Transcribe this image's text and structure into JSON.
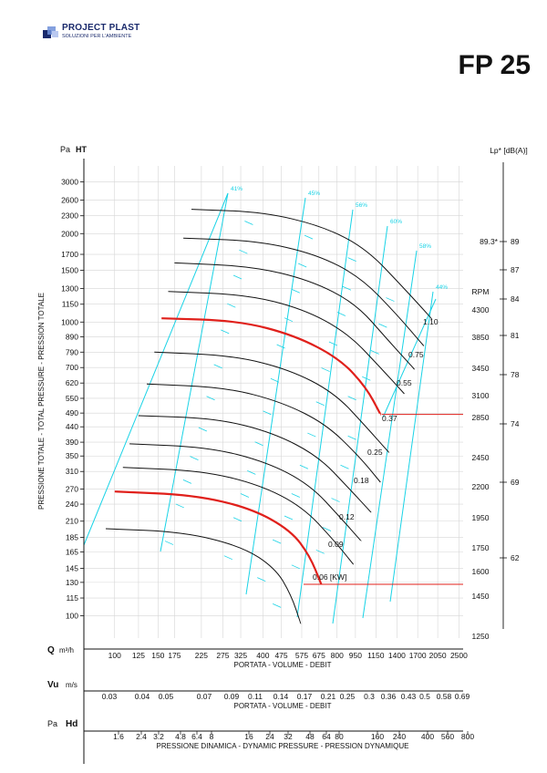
{
  "brand": {
    "name": "PROJECT PLAST",
    "tagline": "SOLUZIONI PER L'AMBIENTE",
    "colors": {
      "navy": "#1a2a6c",
      "accent": "#6f8fd8"
    }
  },
  "model": "FP 25",
  "chart_data": {
    "type": "line",
    "title": "",
    "ylabel": "PRESSIONE TOTALE - TOTAL PRESSURE - PRESSION TOTALE",
    "y_unit_label": "Pa",
    "y_unit_symbol": "HT",
    "y_scale": "log",
    "ylim": [
      84,
      3400
    ],
    "y_ticks": [
      3000,
      2600,
      2300,
      2000,
      1700,
      1500,
      1300,
      1150,
      1000,
      890,
      790,
      700,
      620,
      550,
      490,
      440,
      390,
      350,
      310,
      270,
      240,
      210,
      185,
      165,
      145,
      130,
      115,
      100
    ],
    "x_scale": "log",
    "xlim": [
      75,
      2600
    ],
    "x_axes": [
      {
        "symbol": "Q",
        "unit": "m³/h",
        "label": "PORTATA - VOLUME - DEBIT",
        "ticks": [
          "100",
          "125",
          "150",
          "175",
          "225",
          "275",
          "325",
          "400",
          "475",
          "575",
          "675",
          "800",
          "950",
          "1150",
          "1400",
          "1700",
          "2050",
          "2500"
        ]
      },
      {
        "symbol": "Vu",
        "unit": "m/s",
        "label": "PORTATA - VOLUME - DEBIT",
        "ticks": [
          "0.03",
          "0.04",
          "0.05",
          "0.07",
          "0.09",
          "0.11",
          "0.14",
          "0.17",
          "0.21",
          "0.25",
          "0.3",
          "0.36",
          "0.43",
          "0.5",
          "0.58",
          "0.69"
        ]
      },
      {
        "symbol": "Hd",
        "unit": "Pa",
        "label": "PRESSIONE DINAMICA - DYNAMIC PRESSURE - PRESSION DYNAMIQUE",
        "ticks": [
          "1.6",
          "2.4",
          "3.2",
          "4.8",
          "6.4",
          "8",
          "16",
          "24",
          "32",
          "48",
          "64",
          "80",
          "160",
          "240",
          "400",
          "560",
          "800"
        ]
      }
    ],
    "rpm": {
      "label": "RPM",
      "ticks": [
        "4300",
        "3850",
        "3450",
        "3100",
        "2850",
        "2450",
        "2200",
        "1950",
        "1750",
        "1600",
        "1450",
        "1250"
      ]
    },
    "noise": {
      "label": "Lp* [dB(A)]",
      "ticks": [
        "89",
        "87",
        "84",
        "81",
        "78",
        "74",
        "69",
        "62"
      ],
      "marked": "89.3*"
    },
    "efficiency_lines": [
      "41%",
      "45%",
      "56%",
      "60%",
      "58%",
      "44%"
    ],
    "power_labels": [
      "1.10",
      "0.75",
      "0.55",
      "0.37",
      "0.25",
      "0.18",
      "0.12",
      "0.09",
      "0.06 [KW]"
    ],
    "series": [
      {
        "rpm": 4300,
        "points": [
          [
            205,
            2420
          ],
          [
            400,
            2370
          ],
          [
            700,
            2120
          ],
          [
            1050,
            1780
          ],
          [
            1500,
            1300
          ],
          [
            1950,
            1020
          ]
        ]
      },
      {
        "rpm": 3850,
        "points": [
          [
            190,
            1930
          ],
          [
            380,
            1890
          ],
          [
            660,
            1700
          ],
          [
            1000,
            1420
          ],
          [
            1400,
            1060
          ],
          [
            1800,
            830
          ]
        ]
      },
      {
        "rpm": 3450,
        "points": [
          [
            175,
            1590
          ],
          [
            360,
            1550
          ],
          [
            620,
            1390
          ],
          [
            950,
            1160
          ],
          [
            1300,
            860
          ],
          [
            1650,
            690
          ]
        ]
      },
      {
        "rpm": 3100,
        "points": [
          [
            165,
            1270
          ],
          [
            340,
            1240
          ],
          [
            580,
            1110
          ],
          [
            880,
            920
          ],
          [
            1200,
            700
          ],
          [
            1500,
            570
          ]
        ]
      },
      {
        "rpm": 2850,
        "highlight": true,
        "points": [
          [
            155,
            1030
          ],
          [
            320,
            1010
          ],
          [
            540,
            900
          ],
          [
            820,
            750
          ],
          [
            1050,
            600
          ],
          [
            1200,
            485
          ]
        ]
      },
      {
        "rpm": 2450,
        "points": [
          [
            145,
            790
          ],
          [
            300,
            770
          ],
          [
            510,
            690
          ],
          [
            780,
            575
          ],
          [
            1050,
            440
          ],
          [
            1300,
            360
          ]
        ]
      },
      {
        "rpm": 2200,
        "points": [
          [
            135,
            615
          ],
          [
            280,
            600
          ],
          [
            475,
            535
          ],
          [
            720,
            450
          ],
          [
            980,
            350
          ],
          [
            1200,
            285
          ]
        ]
      },
      {
        "rpm": 1950,
        "points": [
          [
            125,
            480
          ],
          [
            260,
            470
          ],
          [
            440,
            420
          ],
          [
            670,
            350
          ],
          [
            900,
            270
          ],
          [
            1100,
            225
          ]
        ]
      },
      {
        "rpm": 1750,
        "points": [
          [
            115,
            385
          ],
          [
            240,
            375
          ],
          [
            410,
            335
          ],
          [
            620,
            280
          ],
          [
            830,
            215
          ],
          [
            1000,
            180
          ]
        ]
      },
      {
        "rpm": 1600,
        "points": [
          [
            108,
            320
          ],
          [
            225,
            312
          ],
          [
            385,
            280
          ],
          [
            580,
            235
          ],
          [
            780,
            180
          ],
          [
            930,
            150
          ]
        ]
      },
      {
        "rpm": 1450,
        "highlight": true,
        "points": [
          [
            100,
            265
          ],
          [
            210,
            258
          ],
          [
            360,
            232
          ],
          [
            520,
            195
          ],
          [
            620,
            160
          ],
          [
            690,
            128
          ]
        ]
      },
      {
        "rpm": 1250,
        "points": [
          [
            92,
            198
          ],
          [
            190,
            193
          ],
          [
            330,
            172
          ],
          [
            450,
            145
          ],
          [
            520,
            118
          ],
          [
            570,
            94
          ]
        ]
      }
    ],
    "grid": true,
    "legend": "none"
  }
}
